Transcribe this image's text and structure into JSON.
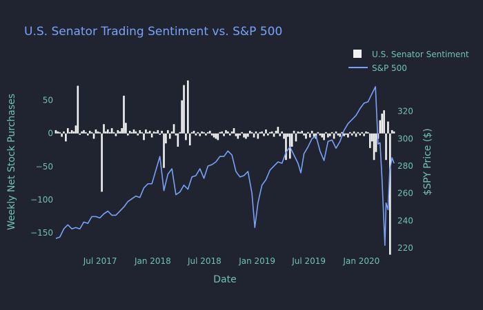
{
  "chart_data": {
    "type": "bar+line",
    "title": "U.S. Senator Trading Sentiment vs. S&P 500",
    "xlabel": "Date",
    "ylabel_left": "Weekly Net Stock Purchases",
    "ylabel_right": "$SPY Price ($)",
    "x_ticks": [
      "Jul 2017",
      "Jan 2018",
      "Jul 2018",
      "Jan 2019",
      "Jul 2019",
      "Jan 2020"
    ],
    "x_tick_dates": [
      "2017-07-01",
      "2018-01-01",
      "2018-07-01",
      "2019-01-01",
      "2019-07-01",
      "2020-01-01"
    ],
    "x_range": [
      "2017-01-20",
      "2020-05-01"
    ],
    "y_left_ticks": [
      50,
      0,
      -50,
      -100,
      -150
    ],
    "y_left_range": [
      -175,
      85
    ],
    "y_right_ticks": [
      320,
      300,
      280,
      260,
      240,
      220
    ],
    "y_right_range": [
      219,
      345
    ],
    "legend_position": "top-right",
    "grid": false,
    "colors": {
      "background": "#1f2430",
      "bars": "#f2f2f2",
      "line": "#7aa2f7",
      "title": "#7aa2f7",
      "axis_text": "#73c0b8"
    },
    "series": [
      {
        "name": "U.S. Senator Sentiment",
        "kind": "bar",
        "axis": "left",
        "points": [
          [
            "2017-01-27",
            5
          ],
          [
            "2017-02-03",
            3
          ],
          [
            "2017-02-10",
            2
          ],
          [
            "2017-02-17",
            -5
          ],
          [
            "2017-02-24",
            3
          ],
          [
            "2017-03-03",
            -12
          ],
          [
            "2017-03-10",
            8
          ],
          [
            "2017-03-17",
            2
          ],
          [
            "2017-03-24",
            5
          ],
          [
            "2017-03-31",
            3
          ],
          [
            "2017-04-07",
            12
          ],
          [
            "2017-04-14",
            72
          ],
          [
            "2017-04-21",
            -2
          ],
          [
            "2017-04-28",
            3
          ],
          [
            "2017-05-05",
            5
          ],
          [
            "2017-05-12",
            2
          ],
          [
            "2017-05-19",
            -3
          ],
          [
            "2017-05-26",
            4
          ],
          [
            "2017-06-02",
            2
          ],
          [
            "2017-06-09",
            -8
          ],
          [
            "2017-06-16",
            6
          ],
          [
            "2017-06-23",
            3
          ],
          [
            "2017-06-30",
            2
          ],
          [
            "2017-07-07",
            -88
          ],
          [
            "2017-07-14",
            14
          ],
          [
            "2017-07-21",
            3
          ],
          [
            "2017-07-28",
            6
          ],
          [
            "2017-08-04",
            2
          ],
          [
            "2017-08-11",
            8
          ],
          [
            "2017-08-18",
            2
          ],
          [
            "2017-08-25",
            -4
          ],
          [
            "2017-09-01",
            5
          ],
          [
            "2017-09-08",
            3
          ],
          [
            "2017-09-15",
            8
          ],
          [
            "2017-09-22",
            57
          ],
          [
            "2017-09-29",
            16
          ],
          [
            "2017-10-06",
            -3
          ],
          [
            "2017-10-13",
            4
          ],
          [
            "2017-10-20",
            2
          ],
          [
            "2017-10-27",
            6
          ],
          [
            "2017-11-03",
            3
          ],
          [
            "2017-11-10",
            -3
          ],
          [
            "2017-11-17",
            5
          ],
          [
            "2017-11-24",
            2
          ],
          [
            "2017-12-01",
            -10
          ],
          [
            "2017-12-08",
            6
          ],
          [
            "2017-12-15",
            2
          ],
          [
            "2017-12-22",
            4
          ],
          [
            "2017-12-29",
            -6
          ],
          [
            "2018-01-05",
            3
          ],
          [
            "2018-01-12",
            2
          ],
          [
            "2018-01-19",
            5
          ],
          [
            "2018-01-26",
            -2
          ],
          [
            "2018-02-02",
            4
          ],
          [
            "2018-02-09",
            -52
          ],
          [
            "2018-02-16",
            -15
          ],
          [
            "2018-02-23",
            5
          ],
          [
            "2018-03-02",
            -8
          ],
          [
            "2018-03-09",
            3
          ],
          [
            "2018-03-16",
            14
          ],
          [
            "2018-03-23",
            -3
          ],
          [
            "2018-03-30",
            -20
          ],
          [
            "2018-04-06",
            2
          ],
          [
            "2018-04-13",
            50
          ],
          [
            "2018-04-20",
            73
          ],
          [
            "2018-04-27",
            -10
          ],
          [
            "2018-05-04",
            80
          ],
          [
            "2018-05-11",
            -18
          ],
          [
            "2018-05-18",
            2
          ],
          [
            "2018-05-25",
            4
          ],
          [
            "2018-06-01",
            -3
          ],
          [
            "2018-06-08",
            2
          ],
          [
            "2018-06-15",
            -4
          ],
          [
            "2018-06-22",
            3
          ],
          [
            "2018-06-29",
            2
          ],
          [
            "2018-07-06",
            -3
          ],
          [
            "2018-07-13",
            2
          ],
          [
            "2018-07-20",
            4
          ],
          [
            "2018-07-27",
            -3
          ],
          [
            "2018-08-03",
            -6
          ],
          [
            "2018-08-10",
            -8
          ],
          [
            "2018-08-17",
            -10
          ],
          [
            "2018-08-24",
            2
          ],
          [
            "2018-08-31",
            3
          ],
          [
            "2018-09-07",
            -4
          ],
          [
            "2018-09-14",
            5
          ],
          [
            "2018-09-21",
            3
          ],
          [
            "2018-09-28",
            -3
          ],
          [
            "2018-10-05",
            3
          ],
          [
            "2018-10-12",
            8
          ],
          [
            "2018-10-19",
            -4
          ],
          [
            "2018-10-26",
            -8
          ],
          [
            "2018-11-02",
            -3
          ],
          [
            "2018-11-09",
            2
          ],
          [
            "2018-11-16",
            -6
          ],
          [
            "2018-11-23",
            -8
          ],
          [
            "2018-11-30",
            -5
          ],
          [
            "2018-12-07",
            4
          ],
          [
            "2018-12-14",
            2
          ],
          [
            "2018-12-21",
            -6
          ],
          [
            "2018-12-28",
            3
          ],
          [
            "2019-01-04",
            -8
          ],
          [
            "2019-01-11",
            2
          ],
          [
            "2019-01-18",
            3
          ],
          [
            "2019-01-25",
            -4
          ],
          [
            "2019-02-01",
            6
          ],
          [
            "2019-02-08",
            -3
          ],
          [
            "2019-02-15",
            2
          ],
          [
            "2019-02-22",
            3
          ],
          [
            "2019-03-01",
            -5
          ],
          [
            "2019-03-08",
            4
          ],
          [
            "2019-03-15",
            10
          ],
          [
            "2019-03-22",
            -4
          ],
          [
            "2019-03-29",
            3
          ],
          [
            "2019-04-05",
            -8
          ],
          [
            "2019-04-12",
            -40
          ],
          [
            "2019-04-19",
            -5
          ],
          [
            "2019-04-26",
            -38
          ],
          [
            "2019-05-03",
            -20
          ],
          [
            "2019-05-10",
            4
          ],
          [
            "2019-05-17",
            -12
          ],
          [
            "2019-05-24",
            3
          ],
          [
            "2019-05-31",
            2
          ],
          [
            "2019-06-07",
            4
          ],
          [
            "2019-06-14",
            -3
          ],
          [
            "2019-06-21",
            -8
          ],
          [
            "2019-06-28",
            2
          ],
          [
            "2019-07-05",
            -6
          ],
          [
            "2019-07-12",
            4
          ],
          [
            "2019-07-19",
            -5
          ],
          [
            "2019-07-26",
            -8
          ],
          [
            "2019-08-02",
            2
          ],
          [
            "2019-08-09",
            -3
          ],
          [
            "2019-08-16",
            -6
          ],
          [
            "2019-08-23",
            -10
          ],
          [
            "2019-08-30",
            2
          ],
          [
            "2019-09-06",
            -6
          ],
          [
            "2019-09-13",
            -4
          ],
          [
            "2019-09-20",
            2
          ],
          [
            "2019-09-27",
            -8
          ],
          [
            "2019-10-04",
            3
          ],
          [
            "2019-10-11",
            -3
          ],
          [
            "2019-10-18",
            -5
          ],
          [
            "2019-10-25",
            2
          ],
          [
            "2019-11-01",
            -4
          ],
          [
            "2019-11-08",
            -2
          ],
          [
            "2019-11-15",
            -6
          ],
          [
            "2019-11-22",
            2
          ],
          [
            "2019-11-29",
            -3
          ],
          [
            "2019-12-06",
            3
          ],
          [
            "2019-12-13",
            -5
          ],
          [
            "2019-12-20",
            2
          ],
          [
            "2019-12-27",
            -3
          ],
          [
            "2020-01-03",
            2
          ],
          [
            "2020-01-10",
            -4
          ],
          [
            "2020-01-17",
            3
          ],
          [
            "2020-01-24",
            2
          ],
          [
            "2020-01-31",
            -22
          ],
          [
            "2020-02-07",
            -12
          ],
          [
            "2020-02-14",
            -40
          ],
          [
            "2020-02-21",
            -28
          ],
          [
            "2020-02-28",
            -8
          ],
          [
            "2020-03-06",
            20
          ],
          [
            "2020-03-13",
            30
          ],
          [
            "2020-03-20",
            35
          ],
          [
            "2020-03-27",
            -40
          ],
          [
            "2020-04-03",
            18
          ],
          [
            "2020-04-10",
            -183
          ],
          [
            "2020-04-17",
            5
          ],
          [
            "2020-04-24",
            3
          ]
        ]
      },
      {
        "name": "S&P 500",
        "kind": "line",
        "axis": "right",
        "points": [
          [
            "2017-01-27",
            227
          ],
          [
            "2017-02-10",
            228
          ],
          [
            "2017-02-24",
            234
          ],
          [
            "2017-03-10",
            237
          ],
          [
            "2017-03-24",
            234
          ],
          [
            "2017-04-07",
            235
          ],
          [
            "2017-04-21",
            234
          ],
          [
            "2017-05-05",
            239
          ],
          [
            "2017-05-19",
            238
          ],
          [
            "2017-06-02",
            243
          ],
          [
            "2017-06-16",
            243
          ],
          [
            "2017-06-30",
            242
          ],
          [
            "2017-07-14",
            245
          ],
          [
            "2017-07-28",
            247
          ],
          [
            "2017-08-11",
            244
          ],
          [
            "2017-08-25",
            244
          ],
          [
            "2017-09-08",
            247
          ],
          [
            "2017-09-22",
            250
          ],
          [
            "2017-10-06",
            254
          ],
          [
            "2017-10-20",
            256
          ],
          [
            "2017-11-03",
            258
          ],
          [
            "2017-11-17",
            257
          ],
          [
            "2017-12-01",
            264
          ],
          [
            "2017-12-15",
            267
          ],
          [
            "2017-12-29",
            267
          ],
          [
            "2018-01-12",
            277
          ],
          [
            "2018-01-26",
            287
          ],
          [
            "2018-02-09",
            262
          ],
          [
            "2018-02-23",
            274
          ],
          [
            "2018-03-09",
            278
          ],
          [
            "2018-03-23",
            259
          ],
          [
            "2018-04-06",
            261
          ],
          [
            "2018-04-20",
            266
          ],
          [
            "2018-05-04",
            263
          ],
          [
            "2018-05-18",
            272
          ],
          [
            "2018-06-01",
            273
          ],
          [
            "2018-06-15",
            278
          ],
          [
            "2018-06-29",
            271
          ],
          [
            "2018-07-13",
            280
          ],
          [
            "2018-07-27",
            281
          ],
          [
            "2018-08-10",
            283
          ],
          [
            "2018-08-24",
            287
          ],
          [
            "2018-09-07",
            287
          ],
          [
            "2018-09-21",
            291
          ],
          [
            "2018-10-05",
            288
          ],
          [
            "2018-10-19",
            276
          ],
          [
            "2018-11-02",
            272
          ],
          [
            "2018-11-16",
            273
          ],
          [
            "2018-11-30",
            276
          ],
          [
            "2018-12-14",
            260
          ],
          [
            "2018-12-24",
            235
          ],
          [
            "2019-01-04",
            253
          ],
          [
            "2019-01-18",
            266
          ],
          [
            "2019-02-01",
            270
          ],
          [
            "2019-02-15",
            277
          ],
          [
            "2019-03-01",
            280
          ],
          [
            "2019-03-15",
            283
          ],
          [
            "2019-03-29",
            282
          ],
          [
            "2019-04-12",
            290
          ],
          [
            "2019-04-26",
            294
          ],
          [
            "2019-05-10",
            288
          ],
          [
            "2019-05-24",
            282
          ],
          [
            "2019-06-03",
            275
          ],
          [
            "2019-06-14",
            289
          ],
          [
            "2019-06-28",
            294
          ],
          [
            "2019-07-12",
            300
          ],
          [
            "2019-07-26",
            302
          ],
          [
            "2019-08-09",
            291
          ],
          [
            "2019-08-23",
            284
          ],
          [
            "2019-09-06",
            298
          ],
          [
            "2019-09-20",
            299
          ],
          [
            "2019-10-04",
            293
          ],
          [
            "2019-10-18",
            298
          ],
          [
            "2019-11-01",
            306
          ],
          [
            "2019-11-15",
            311
          ],
          [
            "2019-11-29",
            314
          ],
          [
            "2019-12-13",
            317
          ],
          [
            "2019-12-27",
            322
          ],
          [
            "2020-01-10",
            326
          ],
          [
            "2020-01-24",
            327
          ],
          [
            "2020-02-07",
            333
          ],
          [
            "2020-02-19",
            338
          ],
          [
            "2020-02-28",
            296
          ],
          [
            "2020-03-06",
            297
          ],
          [
            "2020-03-13",
            270
          ],
          [
            "2020-03-23",
            222
          ],
          [
            "2020-03-27",
            253
          ],
          [
            "2020-04-03",
            248
          ],
          [
            "2020-04-09",
            277
          ],
          [
            "2020-04-17",
            286
          ],
          [
            "2020-04-24",
            282
          ]
        ]
      }
    ]
  }
}
